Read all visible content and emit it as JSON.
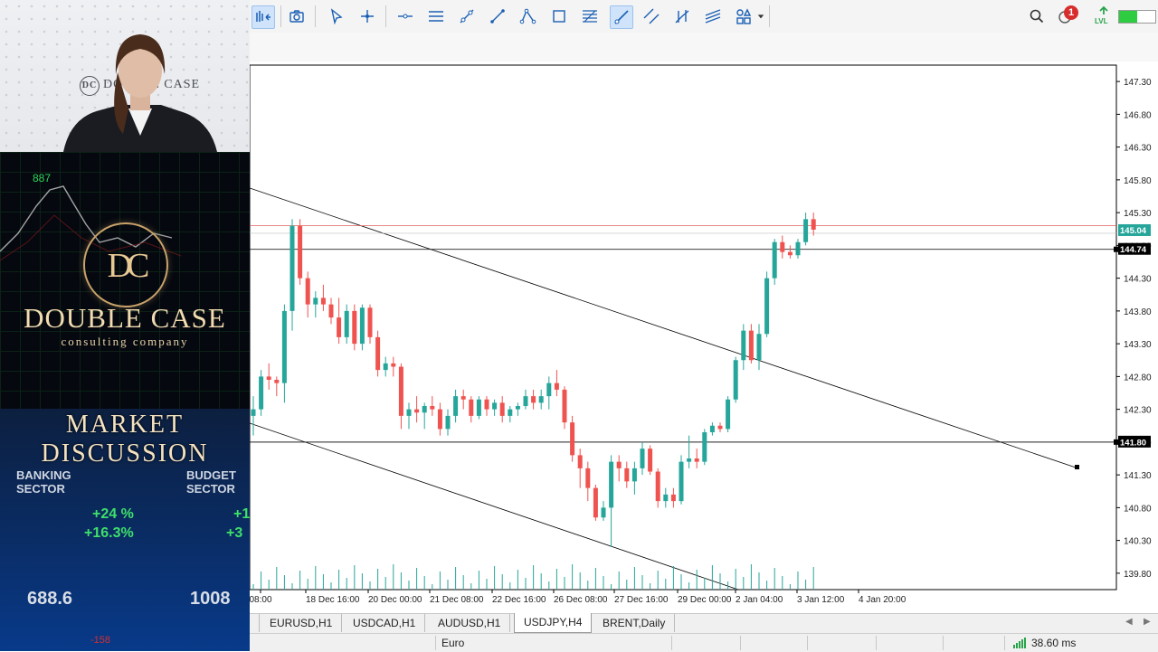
{
  "left_panel": {
    "webcam_wall_logo": "DOUBLE CASE",
    "webcam_wall_logo_mark": "DC",
    "brand": {
      "ticker_number": "887",
      "monogram": "DC",
      "title": "DOUBLE CASE",
      "subtitle": "consulting company"
    },
    "market": {
      "title_line1": "MARKET",
      "title_line2": "DISCUSSION",
      "label_left": "BANKING SECTOR",
      "label_right": "BUDGET SECTOR",
      "pct_left_1": "+24 %",
      "pct_left_2": "+16.3%",
      "pct_right_1": "+1",
      "pct_right_2": "+3",
      "value_left": "688.6",
      "value_right": "1008",
      "small_red": "-158"
    }
  },
  "toolbar": {
    "icons": [
      "chart-bars-icon",
      "screenshot-icon",
      "cursor-icon",
      "crosshair-icon",
      "horizontal-line-icon",
      "equidistant-channel-icon",
      "trend-angle-icon",
      "trend-line-icon",
      "polyline-icon",
      "rectangle-icon",
      "fibonacci-icon",
      "ray-icon",
      "parallel-channel-icon",
      "andrews-pitchfork-icon",
      "regression-channel-icon",
      "shapes-icon"
    ],
    "notification_count": "1",
    "lvl_label": "LVL"
  },
  "chart_data": {
    "type": "candlestick",
    "symbol": "USDJPY",
    "timeframe": "H4",
    "price_axis_labels": [
      "147.30",
      "146.80",
      "146.30",
      "145.80",
      "145.30",
      "144.80",
      "144.30",
      "143.80",
      "143.30",
      "142.80",
      "142.30",
      "141.80",
      "141.30",
      "140.80",
      "140.30",
      "139.80"
    ],
    "time_axis_labels": [
      "08:00",
      "18 Dec 16:00",
      "20 Dec 00:00",
      "21 Dec 08:00",
      "22 Dec 16:00",
      "26 Dec 08:00",
      "27 Dec 16:00",
      "29 Dec 00:00",
      "2 Jan 04:00",
      "3 Jan 12:00",
      "4 Jan 20:00"
    ],
    "price_range": [
      139.55,
      147.55
    ],
    "current_bid": "145.04",
    "hline_1": "144.74",
    "hline_2": "141.80",
    "red_hline": 145.1,
    "current_price_color": "#26a69a",
    "up_color": "#26a69a",
    "down_color": "#ef5350",
    "candles": [
      [
        142.2,
        142.5,
        141.9,
        142.3
      ],
      [
        142.3,
        142.9,
        142.2,
        142.8
      ],
      [
        142.8,
        143.0,
        142.6,
        142.75
      ],
      [
        142.75,
        142.8,
        142.5,
        142.7
      ],
      [
        142.7,
        143.9,
        142.4,
        143.8
      ],
      [
        143.8,
        145.2,
        143.5,
        145.1
      ],
      [
        145.1,
        145.2,
        144.2,
        144.3
      ],
      [
        144.3,
        144.4,
        143.7,
        143.9
      ],
      [
        143.9,
        144.1,
        143.7,
        144.0
      ],
      [
        144.0,
        144.2,
        143.8,
        143.9
      ],
      [
        143.9,
        144.0,
        143.6,
        143.7
      ],
      [
        143.7,
        144.0,
        143.3,
        143.4
      ],
      [
        143.4,
        143.9,
        143.3,
        143.8
      ],
      [
        143.8,
        143.9,
        143.2,
        143.3
      ],
      [
        143.3,
        143.9,
        143.2,
        143.85
      ],
      [
        143.85,
        143.9,
        143.3,
        143.4
      ],
      [
        143.4,
        143.5,
        142.8,
        142.9
      ],
      [
        142.9,
        143.1,
        142.8,
        143.0
      ],
      [
        143.0,
        143.1,
        142.8,
        142.95
      ],
      [
        142.95,
        143.0,
        142.0,
        142.2
      ],
      [
        142.2,
        142.4,
        142.0,
        142.3
      ],
      [
        142.3,
        142.5,
        142.1,
        142.25
      ],
      [
        142.25,
        142.4,
        142.0,
        142.35
      ],
      [
        142.35,
        142.5,
        142.2,
        142.3
      ],
      [
        142.3,
        142.4,
        141.9,
        142.0
      ],
      [
        142.0,
        142.3,
        141.9,
        142.2
      ],
      [
        142.2,
        142.6,
        142.1,
        142.5
      ],
      [
        142.5,
        142.6,
        142.3,
        142.45
      ],
      [
        142.45,
        142.5,
        142.1,
        142.2
      ],
      [
        142.2,
        142.5,
        142.15,
        142.45
      ],
      [
        142.45,
        142.5,
        142.2,
        142.3
      ],
      [
        142.3,
        142.45,
        142.2,
        142.4
      ],
      [
        142.4,
        142.5,
        142.1,
        142.2
      ],
      [
        142.2,
        142.35,
        142.1,
        142.3
      ],
      [
        142.3,
        142.4,
        142.2,
        142.35
      ],
      [
        142.35,
        142.6,
        142.3,
        142.5
      ],
      [
        142.5,
        142.6,
        142.3,
        142.4
      ],
      [
        142.4,
        142.6,
        142.3,
        142.5
      ],
      [
        142.5,
        142.8,
        142.3,
        142.7
      ],
      [
        142.7,
        142.9,
        142.5,
        142.6
      ],
      [
        142.6,
        142.65,
        142.0,
        142.1
      ],
      [
        142.1,
        142.2,
        141.5,
        141.6
      ],
      [
        141.6,
        141.7,
        141.1,
        141.4
      ],
      [
        141.4,
        141.5,
        140.9,
        141.1
      ],
      [
        141.1,
        141.15,
        140.6,
        140.65
      ],
      [
        140.65,
        140.9,
        140.6,
        140.8
      ],
      [
        140.8,
        141.6,
        140.2,
        141.5
      ],
      [
        141.5,
        141.6,
        141.2,
        141.4
      ],
      [
        141.4,
        141.5,
        141.1,
        141.2
      ],
      [
        141.2,
        141.5,
        141.0,
        141.4
      ],
      [
        141.4,
        141.8,
        141.3,
        141.7
      ],
      [
        141.7,
        141.75,
        141.3,
        141.35
      ],
      [
        141.35,
        141.4,
        140.8,
        140.9
      ],
      [
        140.9,
        141.1,
        140.8,
        141.0
      ],
      [
        141.0,
        141.1,
        140.8,
        140.9
      ],
      [
        140.9,
        141.6,
        140.85,
        141.5
      ],
      [
        141.5,
        141.9,
        141.4,
        141.55
      ],
      [
        141.55,
        141.7,
        141.4,
        141.5
      ],
      [
        141.5,
        142.0,
        141.45,
        141.95
      ],
      [
        141.95,
        142.1,
        141.9,
        142.05
      ],
      [
        142.05,
        142.1,
        141.95,
        142.0
      ],
      [
        142.0,
        142.5,
        141.95,
        142.45
      ],
      [
        142.45,
        143.1,
        142.4,
        143.05
      ],
      [
        143.05,
        143.6,
        142.9,
        143.5
      ],
      [
        143.5,
        143.6,
        143.0,
        143.05
      ],
      [
        143.05,
        143.6,
        142.9,
        143.45
      ],
      [
        143.45,
        144.4,
        143.4,
        144.3
      ],
      [
        144.3,
        144.9,
        144.2,
        144.85
      ],
      [
        144.85,
        144.95,
        144.6,
        144.7
      ],
      [
        144.7,
        144.8,
        144.6,
        144.65
      ],
      [
        144.65,
        144.9,
        144.6,
        144.85
      ],
      [
        144.85,
        145.3,
        144.8,
        145.2
      ],
      [
        145.2,
        145.3,
        144.95,
        145.04
      ]
    ]
  },
  "tabs": [
    "EURUSD,H1",
    "USDCAD,H1",
    "AUDUSD,H1",
    "USDJPY,H4",
    "BRENT,Daily"
  ],
  "active_tab": "USDJPY,H4",
  "status": {
    "profile": "Euro",
    "ping": "38.60 ms"
  }
}
